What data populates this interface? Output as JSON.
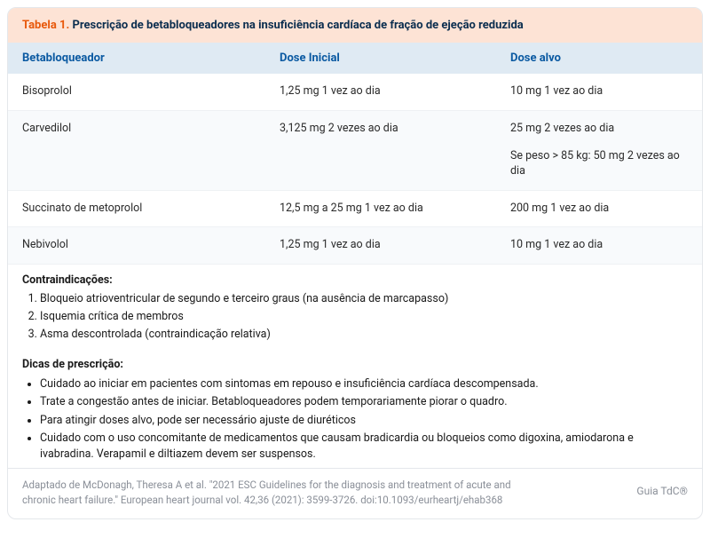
{
  "header": {
    "prefix": "Tabela 1.",
    "title": "Prescrição de betabloqueadores na insuficiência cardíaca de fração de ejeção reduzida"
  },
  "columns": {
    "c1": "Betabloqueador",
    "c2": "Dose Inicial",
    "c3": "Dose alvo"
  },
  "rows": [
    {
      "drug": "Bisoprolol",
      "initial": "1,25 mg 1 vez ao dia",
      "target": "10 mg 1 vez ao dia",
      "target_extra": ""
    },
    {
      "drug": "Carvedilol",
      "initial": "3,125 mg 2 vezes ao dia",
      "target": "25 mg 2 vezes ao dia",
      "target_extra": "Se peso > 85 kg: 50 mg 2 vezes ao dia"
    },
    {
      "drug": "Succinato de metoprolol",
      "initial": "12,5 mg a 25 mg 1 vez ao dia",
      "target": "200 mg 1 vez ao dia",
      "target_extra": ""
    },
    {
      "drug": "Nebivolol",
      "initial": "1,25 mg 1 vez ao dia",
      "target": "10 mg 1 vez ao dia",
      "target_extra": ""
    }
  ],
  "contra": {
    "title": "Contraindicações:",
    "items": [
      "Bloqueio atrioventricular de segundo e terceiro graus (na ausência de marcapasso)",
      "Isquemia crítica de membros",
      "Asma descontrolada (contraindicação relativa)"
    ]
  },
  "tips": {
    "title": "Dicas de prescrição:",
    "items": [
      "Cuidado ao iniciar em pacientes com sintomas em repouso e insuficiência cardíaca descompensada.",
      "Trate a congestão antes de iniciar. Betabloqueadores podem temporariamente piorar o quadro.",
      "Para atingir doses alvo, pode ser necessário ajuste de diuréticos",
      "Cuidado com o uso concomitante de medicamentos que causam bradicardia ou bloqueios como digoxina, amiodarona e ivabradina. Verapamil e diltiazem devem ser suspensos."
    ]
  },
  "footer": {
    "citation": "Adaptado de McDonagh, Theresa A et al. \"2021 ESC Guidelines for the diagnosis and treatment of acute and chronic heart failure.\" European heart journal vol. 42,36 (2021): 3599-3726. doi:10.1093/eurheartj/ehab368",
    "brand": "Guia TdC®"
  },
  "colors": {
    "title_bg": "#fde3d5",
    "title_prefix": "#e8590c",
    "title_text": "#0b2e4f",
    "thead_bg": "#dfeaf3",
    "thead_text": "#0b5aa2",
    "row_alt_bg": "#f8fafc",
    "border": "#e4e7eb",
    "muted": "#8a8f98"
  }
}
